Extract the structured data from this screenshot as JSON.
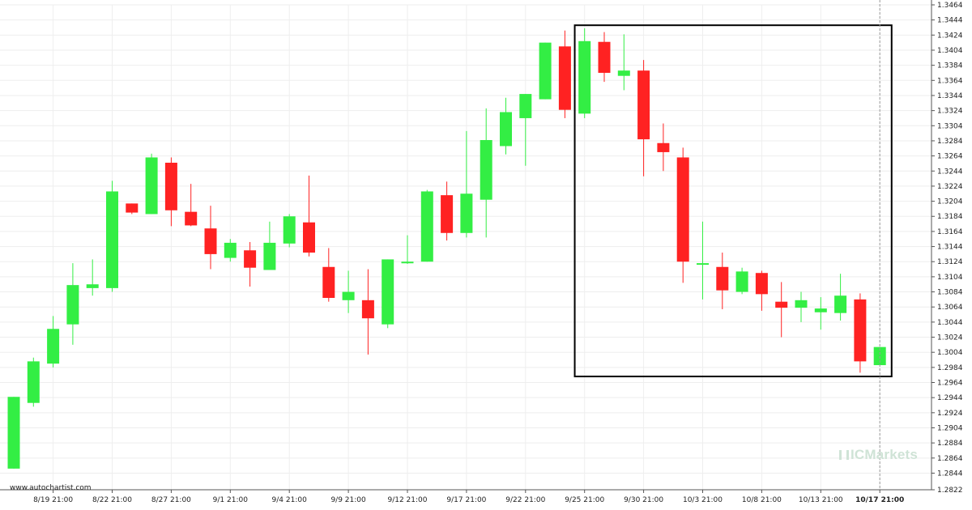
{
  "chart_data": {
    "type": "candlestick",
    "title": "",
    "xlabel": "",
    "ylabel": "",
    "ylim": [
      1.2822,
      1.3464
    ],
    "y_axis_position": "right",
    "y_ticks": [
      "1.2822",
      "1.2844",
      "1.2864",
      "1.2884",
      "1.2904",
      "1.2924",
      "1.2944",
      "1.2964",
      "1.2984",
      "1.3004",
      "1.3024",
      "1.3044",
      "1.3064",
      "1.3084",
      "1.3104",
      "1.3124",
      "1.3144",
      "1.3164",
      "1.3184",
      "1.3204",
      "1.3224",
      "1.3244",
      "1.3264",
      "1.3284",
      "1.3304",
      "1.3324",
      "1.3344",
      "1.3364",
      "1.3384",
      "1.3404",
      "1.3424",
      "1.3444",
      "1.3464"
    ],
    "x_ticks": [
      {
        "label": "8/19 21:00",
        "index": 2
      },
      {
        "label": "8/22 21:00",
        "index": 5
      },
      {
        "label": "8/27 21:00",
        "index": 8
      },
      {
        "label": "9/1 21:00",
        "index": 11
      },
      {
        "label": "9/4 21:00",
        "index": 14
      },
      {
        "label": "9/9 21:00",
        "index": 17
      },
      {
        "label": "9/12 21:00",
        "index": 20
      },
      {
        "label": "9/17 21:00",
        "index": 23
      },
      {
        "label": "9/22 21:00",
        "index": 26
      },
      {
        "label": "9/25 21:00",
        "index": 29
      },
      {
        "label": "9/30 21:00",
        "index": 32
      },
      {
        "label": "10/3 21:00",
        "index": 35
      },
      {
        "label": "10/8 21:00",
        "index": 38
      },
      {
        "label": "10/13 21:00",
        "index": 41
      },
      {
        "label": "10/17 21:00",
        "index": 44,
        "bold": true
      }
    ],
    "up_color": "#33ee44",
    "down_color": "#ff2222",
    "highlight_box": {
      "from_index": 28.5,
      "to_index": 44.6,
      "y_top": 1.3437,
      "y_bottom": 1.2972
    },
    "current_marker_index": 44,
    "candles": [
      {
        "o": 1.285,
        "h": 1.2945,
        "l": 1.285,
        "c": 1.2945
      },
      {
        "o": 1.2937,
        "h": 1.2997,
        "l": 1.2932,
        "c": 1.2992
      },
      {
        "o": 1.2989,
        "h": 1.3052,
        "l": 1.2984,
        "c": 1.3035
      },
      {
        "o": 1.3041,
        "h": 1.3122,
        "l": 1.3014,
        "c": 1.3093
      },
      {
        "o": 1.3089,
        "h": 1.3127,
        "l": 1.3079,
        "c": 1.3094
      },
      {
        "o": 1.3089,
        "h": 1.3231,
        "l": 1.3084,
        "c": 1.3217
      },
      {
        "o": 1.3201,
        "h": 1.3201,
        "l": 1.3187,
        "c": 1.3189
      },
      {
        "o": 1.3187,
        "h": 1.3267,
        "l": 1.3187,
        "c": 1.3262
      },
      {
        "o": 1.3255,
        "h": 1.3262,
        "l": 1.3171,
        "c": 1.3192
      },
      {
        "o": 1.319,
        "h": 1.3227,
        "l": 1.3171,
        "c": 1.3172
      },
      {
        "o": 1.3168,
        "h": 1.3198,
        "l": 1.3114,
        "c": 1.3134
      },
      {
        "o": 1.3129,
        "h": 1.3154,
        "l": 1.3124,
        "c": 1.3149
      },
      {
        "o": 1.3139,
        "h": 1.315,
        "l": 1.3091,
        "c": 1.3116
      },
      {
        "o": 1.3113,
        "h": 1.3177,
        "l": 1.3113,
        "c": 1.3149
      },
      {
        "o": 1.3148,
        "h": 1.3187,
        "l": 1.3143,
        "c": 1.3184
      },
      {
        "o": 1.3176,
        "h": 1.3238,
        "l": 1.3131,
        "c": 1.3136
      },
      {
        "o": 1.3117,
        "h": 1.3142,
        "l": 1.3071,
        "c": 1.3076
      },
      {
        "o": 1.3073,
        "h": 1.3112,
        "l": 1.3056,
        "c": 1.3084
      },
      {
        "o": 1.3073,
        "h": 1.3114,
        "l": 1.3001,
        "c": 1.3049
      },
      {
        "o": 1.3041,
        "h": 1.3127,
        "l": 1.3036,
        "c": 1.3127
      },
      {
        "o": 1.3122,
        "h": 1.3159,
        "l": 1.3121,
        "c": 1.3124
      },
      {
        "o": 1.3124,
        "h": 1.3219,
        "l": 1.3124,
        "c": 1.3217
      },
      {
        "o": 1.3212,
        "h": 1.323,
        "l": 1.3152,
        "c": 1.3162
      },
      {
        "o": 1.3162,
        "h": 1.3297,
        "l": 1.3156,
        "c": 1.3214
      },
      {
        "o": 1.3206,
        "h": 1.3327,
        "l": 1.3156,
        "c": 1.3285
      },
      {
        "o": 1.3277,
        "h": 1.3341,
        "l": 1.3266,
        "c": 1.3322
      },
      {
        "o": 1.3314,
        "h": 1.3346,
        "l": 1.3251,
        "c": 1.3346
      },
      {
        "o": 1.3339,
        "h": 1.3414,
        "l": 1.3339,
        "c": 1.3414
      },
      {
        "o": 1.3409,
        "h": 1.343,
        "l": 1.3314,
        "c": 1.3325
      },
      {
        "o": 1.332,
        "h": 1.3433,
        "l": 1.3314,
        "c": 1.3416
      },
      {
        "o": 1.3415,
        "h": 1.3428,
        "l": 1.3362,
        "c": 1.3374
      },
      {
        "o": 1.337,
        "h": 1.3425,
        "l": 1.3351,
        "c": 1.3377
      },
      {
        "o": 1.3377,
        "h": 1.3391,
        "l": 1.3237,
        "c": 1.3286
      },
      {
        "o": 1.3281,
        "h": 1.3307,
        "l": 1.3244,
        "c": 1.3269
      },
      {
        "o": 1.3262,
        "h": 1.3275,
        "l": 1.3096,
        "c": 1.3124
      },
      {
        "o": 1.3121,
        "h": 1.3177,
        "l": 1.3074,
        "c": 1.3122
      },
      {
        "o": 1.3117,
        "h": 1.3136,
        "l": 1.3061,
        "c": 1.3086
      },
      {
        "o": 1.3084,
        "h": 1.3116,
        "l": 1.3081,
        "c": 1.3111
      },
      {
        "o": 1.3109,
        "h": 1.3112,
        "l": 1.3059,
        "c": 1.3081
      },
      {
        "o": 1.3071,
        "h": 1.3097,
        "l": 1.3024,
        "c": 1.3063
      },
      {
        "o": 1.3063,
        "h": 1.3084,
        "l": 1.3044,
        "c": 1.3073
      },
      {
        "o": 1.3057,
        "h": 1.3077,
        "l": 1.3034,
        "c": 1.3062
      },
      {
        "o": 1.3056,
        "h": 1.3108,
        "l": 1.3046,
        "c": 1.3079
      },
      {
        "o": 1.3074,
        "h": 1.3082,
        "l": 1.2977,
        "c": 1.2992
      },
      {
        "o": 1.2987,
        "h": 1.301,
        "l": 1.2987,
        "c": 1.3011
      }
    ]
  },
  "footer": {
    "source_label": "www.autochartist.com",
    "watermark_text": "ICMarkets"
  }
}
